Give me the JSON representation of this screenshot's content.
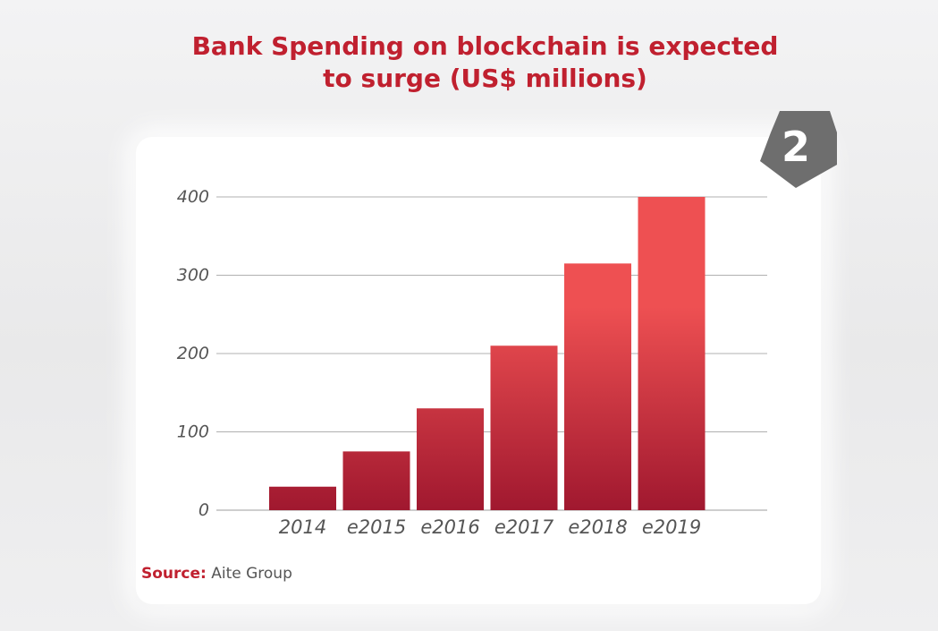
{
  "header": {
    "title_line1": "Bank Spending on blockchain is expected",
    "title_line2": "to surge (US$ millions)"
  },
  "badge": {
    "number": "2"
  },
  "source": {
    "label": "Source:",
    "text": "Aite Group"
  },
  "colors": {
    "accent": "#c0202f",
    "bar_top": "#ee5052",
    "bar_bottom": "#a0182f",
    "gridline": "#b0b0b0",
    "badge": "#6e6e6e"
  },
  "chart_data": {
    "type": "bar",
    "title": "Bank Spending on blockchain is expected to surge (US$ millions)",
    "categories": [
      "2014",
      "e2015",
      "e2016",
      "e2017",
      "e2018",
      "e2019"
    ],
    "values": [
      30,
      75,
      130,
      210,
      315,
      400
    ],
    "ylim": [
      0,
      400
    ],
    "yticks": [
      0,
      100,
      200,
      300,
      400
    ],
    "grid": true,
    "legend": "none"
  }
}
